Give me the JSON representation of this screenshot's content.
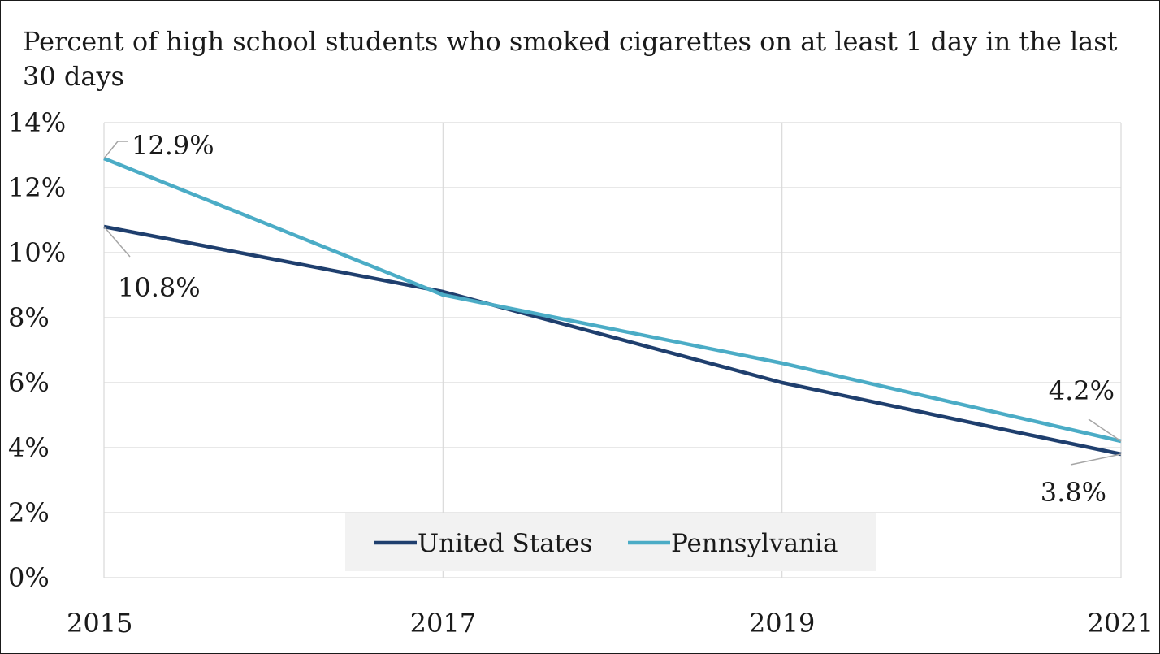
{
  "chart_data": {
    "type": "line",
    "title": "Percent of high school students who smoked cigarettes on at least 1 day in the last 30 days",
    "x": [
      "2015",
      "2017",
      "2019",
      "2021"
    ],
    "ylim": [
      0,
      14
    ],
    "yticks": [
      0,
      2,
      4,
      6,
      8,
      10,
      12,
      14
    ],
    "ytick_labels": [
      "0%",
      "2%",
      "4%",
      "6%",
      "8%",
      "10%",
      "12%",
      "14%"
    ],
    "grid": true,
    "legend_position": "bottom-center",
    "series": [
      {
        "name": "United States",
        "values": [
          10.8,
          8.8,
          6.0,
          3.8
        ],
        "color": "#1f3f6e",
        "labels": {
          "first": "10.8%",
          "last": "3.8%"
        }
      },
      {
        "name": "Pennsylvania",
        "values": [
          12.9,
          8.7,
          6.6,
          4.2
        ],
        "color": "#4bacc6",
        "labels": {
          "first": "12.9%",
          "last": "4.2%"
        }
      }
    ]
  }
}
